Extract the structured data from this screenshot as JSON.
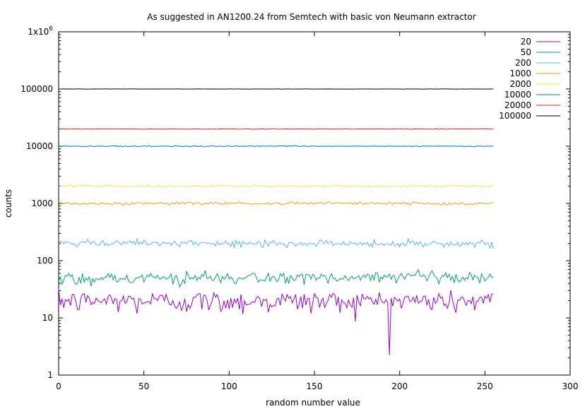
{
  "chart_data": {
    "type": "line",
    "title": "As suggested in AN1200.24 from Semtech with basic von Neumann extractor",
    "xlabel": "random number value",
    "ylabel": "counts",
    "xlim": [
      0,
      300
    ],
    "ylim": [
      1,
      1000000
    ],
    "yscale": "log",
    "xticks": [
      0,
      50,
      100,
      150,
      200,
      250,
      300
    ],
    "yticks": [
      1,
      10,
      100,
      1000,
      10000,
      100000,
      1000000
    ],
    "ytick_labels": [
      "1",
      "10",
      "100",
      "1000",
      "10000",
      "100000",
      "1x10^6"
    ],
    "x_range": [
      0,
      255
    ],
    "legend_position": "top-right",
    "grid": false,
    "series": [
      {
        "name": "20",
        "color": "#9400d3",
        "mean": 20,
        "noise": 0.22
      },
      {
        "name": "50",
        "color": "#009e73",
        "mean": 50,
        "noise": 0.13
      },
      {
        "name": "200",
        "color": "#56b4e9",
        "mean": 200,
        "noise": 0.07
      },
      {
        "name": "1000",
        "color": "#e69f00",
        "mean": 1000,
        "noise": 0.03
      },
      {
        "name": "2000",
        "color": "#f0e442",
        "mean": 2000,
        "noise": 0.022
      },
      {
        "name": "10000",
        "color": "#0072b2",
        "mean": 10000,
        "noise": 0.01
      },
      {
        "name": "20000",
        "color": "#e51e10",
        "mean": 20000,
        "noise": 0.007
      },
      {
        "name": "100000",
        "color": "#000000",
        "mean": 100000,
        "noise": 0.003
      }
    ]
  }
}
